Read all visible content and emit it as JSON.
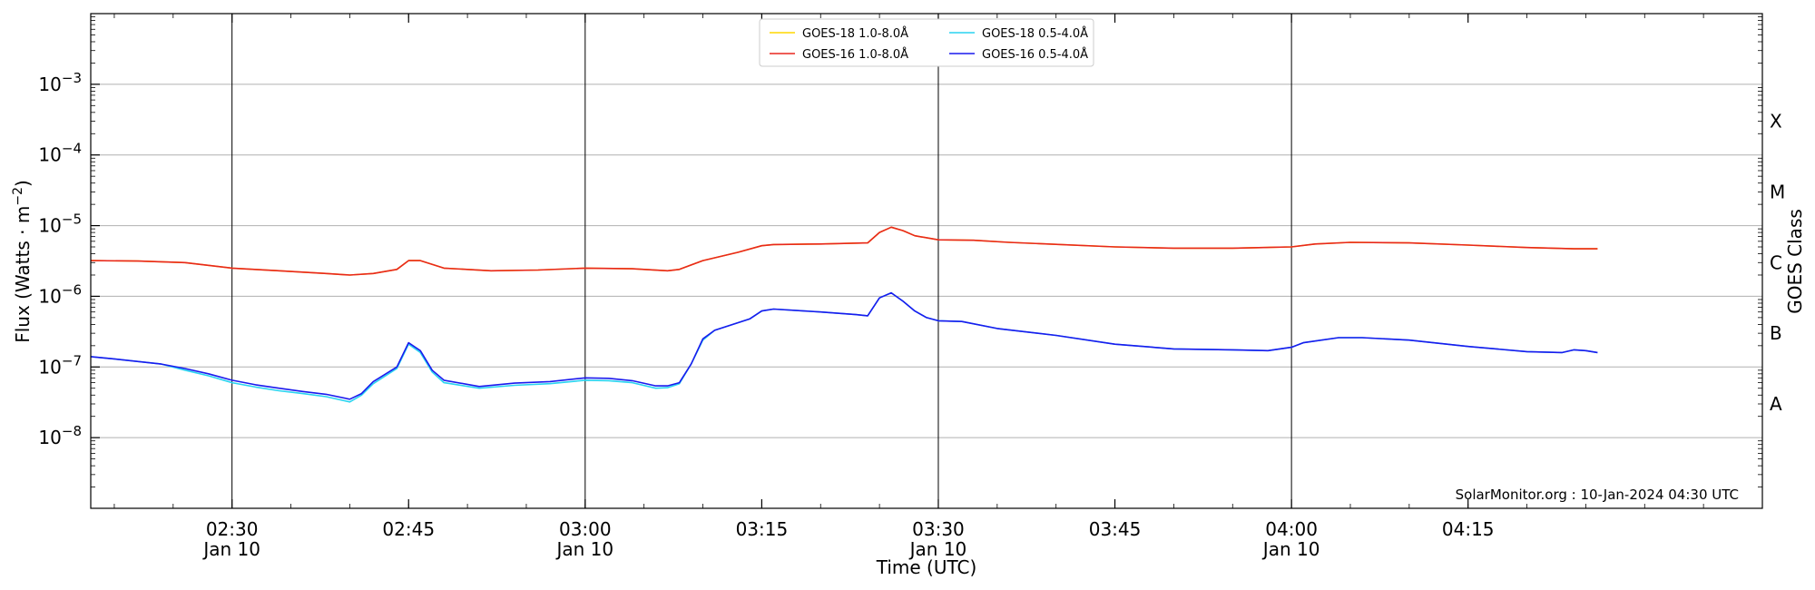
{
  "chart_data": {
    "type": "line",
    "xlabel": "Time (UTC)",
    "ylabel": "Flux (Watts · m",
    "ylabel_sup": "−2",
    "ylabel_close": ")",
    "right_label": "GOES Class",
    "credit": "SolarMonitor.org : 10-Jan-2024 04:30 UTC",
    "x_range": [
      "02:18",
      "04:40"
    ],
    "y_log": true,
    "ylim": [
      1e-09,
      0.01
    ],
    "grid": "horizontal",
    "legend_position": "top-center",
    "x_ticks": [
      {
        "time": "02:30",
        "label": "02:30",
        "date": "Jan 10",
        "vline": true
      },
      {
        "time": "02:45",
        "label": "02:45",
        "date": "",
        "vline": false
      },
      {
        "time": "03:00",
        "label": "03:00",
        "date": "Jan 10",
        "vline": true
      },
      {
        "time": "03:15",
        "label": "03:15",
        "date": "",
        "vline": false
      },
      {
        "time": "03:30",
        "label": "03:30",
        "date": "Jan 10",
        "vline": true
      },
      {
        "time": "03:45",
        "label": "03:45",
        "date": "",
        "vline": false
      },
      {
        "time": "04:00",
        "label": "04:00",
        "date": "Jan 10",
        "vline": true
      },
      {
        "time": "04:15",
        "label": "04:15",
        "date": "",
        "vline": false
      }
    ],
    "y_ticks": [
      {
        "value": 1e-08,
        "exp": "−8"
      },
      {
        "value": 1e-07,
        "exp": "−7"
      },
      {
        "value": 1e-06,
        "exp": "−6"
      },
      {
        "value": 1e-05,
        "exp": "−5"
      },
      {
        "value": 0.0001,
        "exp": "−4"
      },
      {
        "value": 0.001,
        "exp": "−3"
      }
    ],
    "goes_classes": [
      {
        "label": "A",
        "value": 3e-08
      },
      {
        "label": "B",
        "value": 3e-07
      },
      {
        "label": "C",
        "value": 3e-06
      },
      {
        "label": "M",
        "value": 3e-05
      },
      {
        "label": "X",
        "value": 0.0003
      }
    ],
    "series": [
      {
        "name": "GOES-18 1.0-8.0Å",
        "color": "#ffd700",
        "points": [
          [
            "02:18",
            3.2e-06
          ],
          [
            "02:22",
            3.15e-06
          ],
          [
            "02:26",
            3e-06
          ],
          [
            "02:30",
            2.5e-06
          ],
          [
            "02:34",
            2.3e-06
          ],
          [
            "02:38",
            2.1e-06
          ],
          [
            "02:40",
            2e-06
          ],
          [
            "02:42",
            2.1e-06
          ],
          [
            "02:44",
            2.4e-06
          ],
          [
            "02:45",
            3.2e-06
          ],
          [
            "02:46",
            3.2e-06
          ],
          [
            "02:48",
            2.5e-06
          ],
          [
            "02:52",
            2.3e-06
          ],
          [
            "02:56",
            2.35e-06
          ],
          [
            "03:00",
            2.5e-06
          ],
          [
            "03:04",
            2.45e-06
          ],
          [
            "03:07",
            2.3e-06
          ],
          [
            "03:08",
            2.4e-06
          ],
          [
            "03:10",
            3.2e-06
          ],
          [
            "03:13",
            4.2e-06
          ],
          [
            "03:15",
            5.2e-06
          ],
          [
            "03:16",
            5.4e-06
          ],
          [
            "03:20",
            5.5e-06
          ],
          [
            "03:24",
            5.7e-06
          ],
          [
            "03:25",
            8e-06
          ],
          [
            "03:26",
            9.5e-06
          ],
          [
            "03:27",
            8.5e-06
          ],
          [
            "03:28",
            7.2e-06
          ],
          [
            "03:30",
            6.3e-06
          ],
          [
            "03:33",
            6.2e-06
          ],
          [
            "03:36",
            5.8e-06
          ],
          [
            "03:45",
            5e-06
          ],
          [
            "03:50",
            4.8e-06
          ],
          [
            "03:55",
            4.8e-06
          ],
          [
            "04:00",
            5e-06
          ],
          [
            "04:02",
            5.5e-06
          ],
          [
            "04:05",
            5.8e-06
          ],
          [
            "04:10",
            5.7e-06
          ],
          [
            "04:15",
            5.3e-06
          ],
          [
            "04:20",
            4.9e-06
          ],
          [
            "04:24",
            4.7e-06
          ],
          [
            "04:26",
            4.7e-06
          ]
        ]
      },
      {
        "name": "GOES-16 1.0-8.0Å",
        "color": "#e8271e",
        "points": [
          [
            "02:18",
            3.2e-06
          ],
          [
            "02:22",
            3.15e-06
          ],
          [
            "02:26",
            3e-06
          ],
          [
            "02:30",
            2.5e-06
          ],
          [
            "02:34",
            2.3e-06
          ],
          [
            "02:38",
            2.1e-06
          ],
          [
            "02:40",
            2e-06
          ],
          [
            "02:42",
            2.1e-06
          ],
          [
            "02:44",
            2.4e-06
          ],
          [
            "02:45",
            3.2e-06
          ],
          [
            "02:46",
            3.2e-06
          ],
          [
            "02:48",
            2.5e-06
          ],
          [
            "02:52",
            2.3e-06
          ],
          [
            "02:56",
            2.35e-06
          ],
          [
            "03:00",
            2.5e-06
          ],
          [
            "03:04",
            2.45e-06
          ],
          [
            "03:07",
            2.3e-06
          ],
          [
            "03:08",
            2.4e-06
          ],
          [
            "03:10",
            3.2e-06
          ],
          [
            "03:13",
            4.2e-06
          ],
          [
            "03:15",
            5.2e-06
          ],
          [
            "03:16",
            5.4e-06
          ],
          [
            "03:20",
            5.5e-06
          ],
          [
            "03:24",
            5.7e-06
          ],
          [
            "03:25",
            8e-06
          ],
          [
            "03:26",
            9.5e-06
          ],
          [
            "03:27",
            8.5e-06
          ],
          [
            "03:28",
            7.2e-06
          ],
          [
            "03:30",
            6.3e-06
          ],
          [
            "03:33",
            6.2e-06
          ],
          [
            "03:36",
            5.8e-06
          ],
          [
            "03:45",
            5e-06
          ],
          [
            "03:50",
            4.8e-06
          ],
          [
            "03:55",
            4.8e-06
          ],
          [
            "04:00",
            5e-06
          ],
          [
            "04:02",
            5.5e-06
          ],
          [
            "04:05",
            5.8e-06
          ],
          [
            "04:10",
            5.7e-06
          ],
          [
            "04:15",
            5.3e-06
          ],
          [
            "04:20",
            4.9e-06
          ],
          [
            "04:24",
            4.7e-06
          ],
          [
            "04:26",
            4.7e-06
          ]
        ]
      },
      {
        "name": "GOES-18 0.5-4.0Å",
        "color": "#29d4f0",
        "points": [
          [
            "02:18",
            1.4e-07
          ],
          [
            "02:20",
            1.3e-07
          ],
          [
            "02:24",
            1.1e-07
          ],
          [
            "02:26",
            9e-08
          ],
          [
            "02:28",
            7.5e-08
          ],
          [
            "02:30",
            6e-08
          ],
          [
            "02:32",
            5.2e-08
          ],
          [
            "02:34",
            4.6e-08
          ],
          [
            "02:36",
            4.2e-08
          ],
          [
            "02:38",
            3.8e-08
          ],
          [
            "02:40",
            3.2e-08
          ],
          [
            "02:41",
            4e-08
          ],
          [
            "02:42",
            5.8e-08
          ],
          [
            "02:44",
            9.5e-08
          ],
          [
            "02:45",
            2.1e-07
          ],
          [
            "02:46",
            1.6e-07
          ],
          [
            "02:47",
            8.5e-08
          ],
          [
            "02:48",
            6e-08
          ],
          [
            "02:51",
            5e-08
          ],
          [
            "02:54",
            5.5e-08
          ],
          [
            "02:57",
            5.8e-08
          ],
          [
            "03:00",
            6.5e-08
          ],
          [
            "03:02",
            6.4e-08
          ],
          [
            "03:04",
            6e-08
          ],
          [
            "03:06",
            5e-08
          ],
          [
            "03:07",
            5.1e-08
          ],
          [
            "03:08",
            5.8e-08
          ],
          [
            "03:09",
            1.1e-07
          ],
          [
            "03:10",
            2.4e-07
          ],
          [
            "03:11",
            3.3e-07
          ],
          [
            "03:14",
            4.8e-07
          ],
          [
            "03:15",
            6.2e-07
          ],
          [
            "03:16",
            6.6e-07
          ],
          [
            "03:20",
            6e-07
          ],
          [
            "03:23",
            5.5e-07
          ],
          [
            "03:24",
            5.3e-07
          ],
          [
            "03:25",
            9.5e-07
          ],
          [
            "03:26",
            1.12e-06
          ],
          [
            "03:27",
            8.5e-07
          ],
          [
            "03:28",
            6.2e-07
          ],
          [
            "03:29",
            5e-07
          ],
          [
            "03:30",
            4.5e-07
          ],
          [
            "03:32",
            4.4e-07
          ],
          [
            "03:35",
            3.5e-07
          ],
          [
            "03:40",
            2.8e-07
          ],
          [
            "03:45",
            2.1e-07
          ],
          [
            "03:50",
            1.8e-07
          ],
          [
            "03:55",
            1.75e-07
          ],
          [
            "03:58",
            1.7e-07
          ],
          [
            "04:00",
            1.9e-07
          ],
          [
            "04:01",
            2.2e-07
          ],
          [
            "04:04",
            2.6e-07
          ],
          [
            "04:06",
            2.6e-07
          ],
          [
            "04:10",
            2.4e-07
          ],
          [
            "04:15",
            1.95e-07
          ],
          [
            "04:20",
            1.65e-07
          ],
          [
            "04:23",
            1.6e-07
          ],
          [
            "04:24",
            1.75e-07
          ],
          [
            "04:25",
            1.7e-07
          ],
          [
            "04:26",
            1.6e-07
          ]
        ]
      },
      {
        "name": "GOES-16 0.5-4.0Å",
        "color": "#1a1aee",
        "points": [
          [
            "02:18",
            1.4e-07
          ],
          [
            "02:20",
            1.3e-07
          ],
          [
            "02:24",
            1.1e-07
          ],
          [
            "02:26",
            9.5e-08
          ],
          [
            "02:28",
            8e-08
          ],
          [
            "02:30",
            6.5e-08
          ],
          [
            "02:32",
            5.6e-08
          ],
          [
            "02:34",
            5e-08
          ],
          [
            "02:36",
            4.5e-08
          ],
          [
            "02:38",
            4.1e-08
          ],
          [
            "02:40",
            3.5e-08
          ],
          [
            "02:41",
            4.2e-08
          ],
          [
            "02:42",
            6.2e-08
          ],
          [
            "02:44",
            1e-07
          ],
          [
            "02:45",
            2.2e-07
          ],
          [
            "02:46",
            1.7e-07
          ],
          [
            "02:47",
            9e-08
          ],
          [
            "02:48",
            6.5e-08
          ],
          [
            "02:51",
            5.3e-08
          ],
          [
            "02:54",
            5.9e-08
          ],
          [
            "02:57",
            6.2e-08
          ],
          [
            "03:00",
            7e-08
          ],
          [
            "03:02",
            6.9e-08
          ],
          [
            "03:04",
            6.4e-08
          ],
          [
            "03:06",
            5.4e-08
          ],
          [
            "03:07",
            5.4e-08
          ],
          [
            "03:08",
            6e-08
          ],
          [
            "03:09",
            1.1e-07
          ],
          [
            "03:10",
            2.5e-07
          ],
          [
            "03:11",
            3.3e-07
          ],
          [
            "03:14",
            4.8e-07
          ],
          [
            "03:15",
            6.2e-07
          ],
          [
            "03:16",
            6.6e-07
          ],
          [
            "03:20",
            6e-07
          ],
          [
            "03:23",
            5.5e-07
          ],
          [
            "03:24",
            5.3e-07
          ],
          [
            "03:25",
            9.5e-07
          ],
          [
            "03:26",
            1.12e-06
          ],
          [
            "03:27",
            8.5e-07
          ],
          [
            "03:28",
            6.2e-07
          ],
          [
            "03:29",
            5e-07
          ],
          [
            "03:30",
            4.5e-07
          ],
          [
            "03:32",
            4.4e-07
          ],
          [
            "03:35",
            3.5e-07
          ],
          [
            "03:40",
            2.8e-07
          ],
          [
            "03:45",
            2.1e-07
          ],
          [
            "03:50",
            1.8e-07
          ],
          [
            "03:55",
            1.75e-07
          ],
          [
            "03:58",
            1.7e-07
          ],
          [
            "04:00",
            1.9e-07
          ],
          [
            "04:01",
            2.2e-07
          ],
          [
            "04:04",
            2.6e-07
          ],
          [
            "04:06",
            2.6e-07
          ],
          [
            "04:10",
            2.4e-07
          ],
          [
            "04:15",
            1.95e-07
          ],
          [
            "04:20",
            1.65e-07
          ],
          [
            "04:23",
            1.6e-07
          ],
          [
            "04:24",
            1.75e-07
          ],
          [
            "04:25",
            1.7e-07
          ],
          [
            "04:26",
            1.6e-07
          ]
        ]
      }
    ]
  }
}
